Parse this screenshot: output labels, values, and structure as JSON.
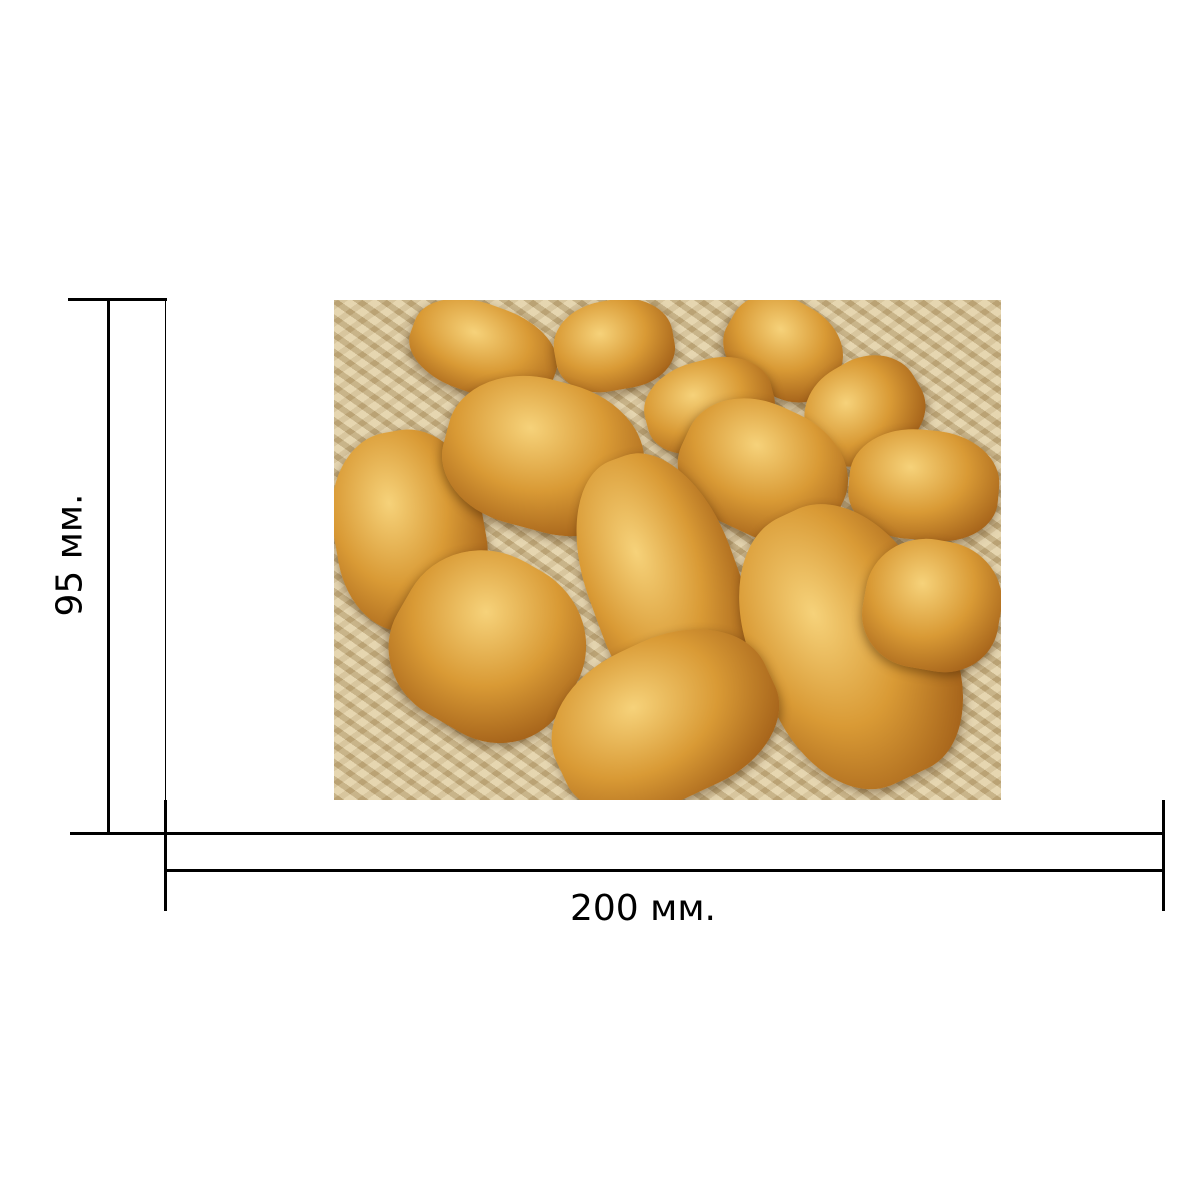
{
  "dimensions": {
    "width_label": "200 мм.",
    "height_label": "95 мм."
  },
  "photo": {
    "subject": "croissants-on-bamboo-tray"
  },
  "colors": {
    "line": "#000000",
    "background": "#ffffff"
  }
}
